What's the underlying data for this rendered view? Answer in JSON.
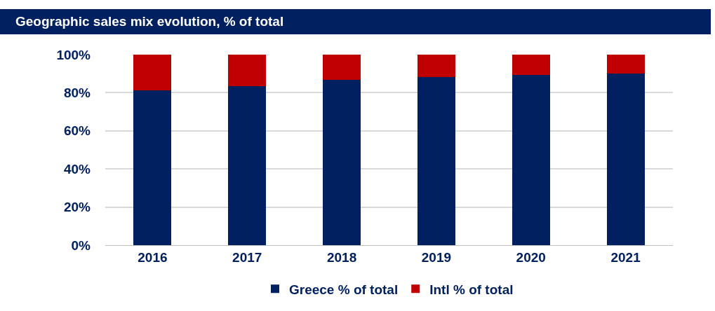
{
  "chart_data": {
    "type": "bar",
    "title": "Geographic sales mix evolution, % of total",
    "categories": [
      "2016",
      "2017",
      "2018",
      "2019",
      "2020",
      "2021"
    ],
    "series": [
      {
        "name": "Greece % of total",
        "color": "#002060",
        "values": [
          81.1,
          83.3,
          86.8,
          88.3,
          89.5,
          89.9
        ]
      },
      {
        "name": "Intl % of total",
        "color": "#c00000",
        "values": [
          18.9,
          16.7,
          13.2,
          11.7,
          10.5,
          10.1
        ]
      }
    ],
    "stacked": true,
    "ylim": [
      0,
      100
    ],
    "yticks": [
      {
        "value": 0,
        "label": "0%"
      },
      {
        "value": 20,
        "label": "20%"
      },
      {
        "value": 40,
        "label": "40%"
      },
      {
        "value": 60,
        "label": "60%"
      },
      {
        "value": 80,
        "label": "80%"
      },
      {
        "value": 100,
        "label": "100%"
      }
    ],
    "grid": "y",
    "legend": "bottom"
  }
}
